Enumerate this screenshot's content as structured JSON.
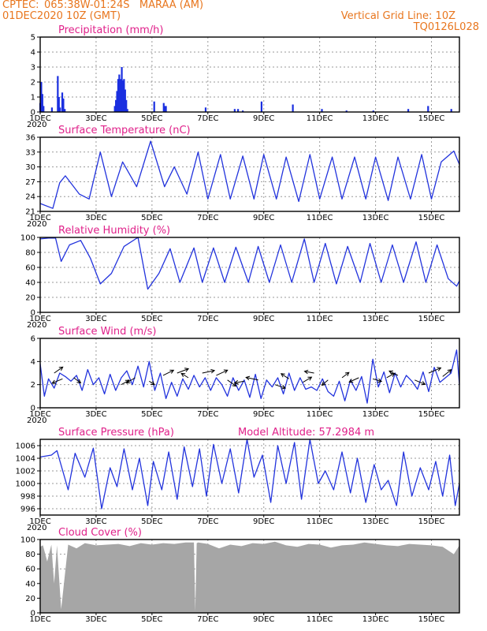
{
  "header": {
    "source": "CPTEC:",
    "location": "065:38W-01:24S   MARAA (AM)",
    "run": "01DEC2020 10Z (GMT)",
    "grid_note": "Vertical Grid Line: 10Z",
    "model_id": "TQ0126L028"
  },
  "colors": {
    "header_text": "#e8761e",
    "panel_title": "#e0218a",
    "series_line": "#2233dd",
    "precip_bar": "#1a2fe0",
    "cloud_fill": "#a6a6a6",
    "wind_arrow": "#000000"
  },
  "x_axis": {
    "tick_labels": [
      "1DEC",
      "3DEC",
      "5DEC",
      "7DEC",
      "9DEC",
      "11DEC",
      "13DEC",
      "15DEC"
    ],
    "tick_days": [
      1,
      3,
      5,
      7,
      9,
      11,
      13,
      15
    ],
    "range_days": [
      1,
      16
    ],
    "year_fragment": "2020"
  },
  "chart_data": [
    {
      "id": "precip",
      "type": "bar",
      "title": "Precipitation (mm/h)",
      "ylim": [
        0,
        5
      ],
      "yticks": [
        0,
        1,
        2,
        3,
        4,
        5
      ],
      "grid": true,
      "x": [
        1.0,
        1.04,
        1.08,
        1.12,
        1.42,
        1.63,
        1.67,
        1.71,
        1.79,
        1.83,
        1.88,
        3.67,
        3.71,
        3.75,
        3.79,
        3.83,
        3.88,
        3.92,
        3.96,
        4.0,
        4.04,
        4.08,
        4.12,
        5.08,
        5.42,
        5.46,
        5.5,
        6.92,
        7.96,
        8.08,
        8.25,
        8.92,
        10.04,
        11.08,
        11.96,
        12.92,
        14.17,
        14.88,
        15.71
      ],
      "values": [
        0.6,
        2.0,
        1.2,
        0.4,
        0.3,
        2.4,
        1.0,
        0.3,
        1.3,
        0.9,
        0.2,
        0.4,
        0.8,
        1.4,
        2.2,
        2.5,
        2.2,
        3.0,
        2.1,
        2.2,
        1.5,
        0.8,
        0.2,
        0.7,
        0.6,
        0.4,
        0.4,
        0.3,
        0.2,
        0.2,
        0.1,
        0.7,
        0.5,
        0.2,
        0.1,
        0.1,
        0.2,
        0.4,
        0.2
      ]
    },
    {
      "id": "temperature",
      "type": "line",
      "title": "Surface Temperature (nC)",
      "ylim": [
        21,
        36
      ],
      "yticks": [
        21,
        24,
        27,
        30,
        33,
        36
      ],
      "grid": true,
      "x": [
        1.0,
        1.45,
        1.7,
        1.9,
        2.4,
        2.75,
        3.15,
        3.55,
        3.95,
        4.45,
        4.95,
        5.45,
        5.8,
        6.25,
        6.65,
        7.0,
        7.45,
        7.8,
        8.25,
        8.65,
        9.0,
        9.45,
        9.8,
        10.25,
        10.65,
        11.0,
        11.45,
        11.8,
        12.25,
        12.65,
        13.0,
        13.45,
        13.8,
        14.25,
        14.65,
        15.0,
        15.35,
        15.8,
        16.0
      ],
      "values": [
        22.6,
        21.6,
        26.8,
        28.2,
        24.5,
        23.5,
        33.0,
        24.0,
        31.0,
        26.0,
        35.2,
        26.0,
        30.0,
        24.5,
        33.0,
        23.5,
        32.5,
        23.5,
        32.2,
        23.5,
        32.5,
        23.5,
        32.0,
        23.0,
        32.5,
        23.5,
        32.0,
        23.5,
        32.0,
        23.5,
        32.0,
        23.2,
        32.0,
        23.5,
        32.5,
        23.5,
        31.0,
        33.2,
        30.5
      ]
    },
    {
      "id": "humidity",
      "type": "line",
      "title": "Relative Humidity (%)",
      "ylim": [
        0,
        100
      ],
      "yticks": [
        0,
        20,
        40,
        60,
        80,
        100
      ],
      "grid": true,
      "x": [
        1.0,
        1.3,
        1.55,
        1.75,
        2.05,
        2.45,
        2.8,
        3.15,
        3.55,
        4.0,
        4.5,
        4.85,
        5.25,
        5.65,
        6.0,
        6.5,
        6.8,
        7.2,
        7.6,
        8.0,
        8.45,
        8.8,
        9.2,
        9.6,
        10.0,
        10.45,
        10.8,
        11.2,
        11.6,
        12.0,
        12.45,
        12.8,
        13.2,
        13.6,
        14.0,
        14.45,
        14.8,
        15.2,
        15.6,
        15.9,
        16.0
      ],
      "values": [
        98,
        99,
        99,
        68,
        90,
        96,
        72,
        38,
        52,
        88,
        100,
        31,
        52,
        85,
        40,
        86,
        40,
        86,
        40,
        87,
        40,
        88,
        40,
        90,
        40,
        98,
        40,
        92,
        38,
        88,
        40,
        92,
        40,
        90,
        40,
        94,
        40,
        90,
        45,
        35,
        42
      ]
    },
    {
      "id": "wind",
      "type": "line",
      "title": "Surface Wind (m/s)",
      "ylim": [
        0,
        6
      ],
      "yticks": [
        0,
        2,
        4,
        6
      ],
      "grid": true,
      "x": [
        1.0,
        1.15,
        1.3,
        1.5,
        1.7,
        1.9,
        2.1,
        2.3,
        2.5,
        2.7,
        2.9,
        3.1,
        3.3,
        3.5,
        3.7,
        3.9,
        4.1,
        4.3,
        4.5,
        4.7,
        4.9,
        5.1,
        5.3,
        5.5,
        5.7,
        5.9,
        6.1,
        6.3,
        6.5,
        6.7,
        6.9,
        7.1,
        7.3,
        7.5,
        7.7,
        7.9,
        8.1,
        8.3,
        8.5,
        8.7,
        8.9,
        9.1,
        9.3,
        9.5,
        9.7,
        9.9,
        10.1,
        10.3,
        10.5,
        10.7,
        10.9,
        11.1,
        11.3,
        11.5,
        11.7,
        11.9,
        12.1,
        12.3,
        12.5,
        12.7,
        12.9,
        13.1,
        13.3,
        13.5,
        13.7,
        13.9,
        14.1,
        14.3,
        14.5,
        14.7,
        14.9,
        15.1,
        15.3,
        15.5,
        15.7,
        15.9,
        16.0
      ],
      "values": [
        3.8,
        1.0,
        2.5,
        1.7,
        3.0,
        2.7,
        2.3,
        2.8,
        1.5,
        3.3,
        2.0,
        2.6,
        1.2,
        2.9,
        1.5,
        2.6,
        3.2,
        2.0,
        3.6,
        1.8,
        4.0,
        1.5,
        3.0,
        0.8,
        2.2,
        1.0,
        2.5,
        1.6,
        2.8,
        1.8,
        2.6,
        1.5,
        2.6,
        2.0,
        1.0,
        2.6,
        1.5,
        2.4,
        0.9,
        2.9,
        0.8,
        2.4,
        1.8,
        2.6,
        1.2,
        3.0,
        1.5,
        2.6,
        1.6,
        1.8,
        1.5,
        2.5,
        1.4,
        1.0,
        2.3,
        0.6,
        2.4,
        1.5,
        2.7,
        0.4,
        4.2,
        1.8,
        3.1,
        1.3,
        3.0,
        1.8,
        2.8,
        2.3,
        1.6,
        3.1,
        1.4,
        3.5,
        2.2,
        2.6,
        3.0,
        5.0,
        2.0
      ]
    },
    {
      "id": "pressure",
      "type": "line",
      "title": "Surface Pressure (hPa)",
      "annotation": "Model Altitude: 57.2984  m",
      "ylim": [
        995,
        1007
      ],
      "yticks": [
        996,
        998,
        1000,
        1002,
        1004,
        1006
      ],
      "grid": true,
      "x": [
        1.0,
        1.4,
        1.6,
        2.0,
        2.25,
        2.6,
        2.9,
        3.2,
        3.5,
        3.75,
        4.0,
        4.3,
        4.55,
        4.85,
        5.05,
        5.35,
        5.6,
        5.9,
        6.15,
        6.45,
        6.7,
        6.95,
        7.2,
        7.5,
        7.8,
        8.1,
        8.4,
        8.65,
        8.95,
        9.25,
        9.5,
        9.8,
        10.1,
        10.35,
        10.65,
        10.95,
        11.2,
        11.5,
        11.8,
        12.1,
        12.35,
        12.65,
        12.95,
        13.2,
        13.45,
        13.75,
        14.0,
        14.3,
        14.6,
        14.9,
        15.15,
        15.4,
        15.65,
        15.85,
        16.0
      ],
      "values": [
        1004.2,
        1004.5,
        1005.2,
        999.0,
        1004.8,
        1001.0,
        1005.6,
        996.0,
        1002.5,
        999.5,
        1005.5,
        999.0,
        1004.0,
        996.5,
        1003.5,
        999.0,
        1005.0,
        997.5,
        1005.8,
        999.5,
        1005.5,
        998.0,
        1006.2,
        1000.0,
        1005.5,
        998.5,
        1007.0,
        1001.0,
        1004.5,
        997.0,
        1006.0,
        1000.0,
        1006.5,
        997.5,
        1007.0,
        1000.0,
        1002.0,
        999.0,
        1005.0,
        998.5,
        1004.0,
        997.0,
        1003.0,
        999.0,
        1000.5,
        996.5,
        1005.0,
        998.0,
        1002.5,
        999.0,
        1003.5,
        998.0,
        1004.5,
        996.5,
        1000.0
      ]
    },
    {
      "id": "cloud",
      "type": "area",
      "title": "Cloud Cover (%)",
      "ylim": [
        0,
        100
      ],
      "yticks": [
        0,
        20,
        40,
        60,
        80,
        100
      ],
      "grid": true,
      "x": [
        1.0,
        1.1,
        1.25,
        1.4,
        1.5,
        1.6,
        1.75,
        2.0,
        2.3,
        2.6,
        3.0,
        3.4,
        3.8,
        4.2,
        4.6,
        5.0,
        5.4,
        5.8,
        6.2,
        6.5,
        6.55,
        6.6,
        6.65,
        7.0,
        7.4,
        7.8,
        8.2,
        8.6,
        9.0,
        9.4,
        9.8,
        10.2,
        10.6,
        11.0,
        11.4,
        11.8,
        12.2,
        12.6,
        13.0,
        13.4,
        13.8,
        14.2,
        14.6,
        15.0,
        15.4,
        15.8,
        16.0
      ],
      "values": [
        90,
        92,
        70,
        93,
        40,
        92,
        5,
        93,
        88,
        95,
        92,
        93,
        94,
        91,
        95,
        93,
        95,
        94,
        96,
        96,
        2,
        95,
        96,
        94,
        88,
        93,
        91,
        95,
        94,
        97,
        92,
        90,
        94,
        93,
        89,
        92,
        93,
        96,
        94,
        92,
        91,
        94,
        93,
        92,
        90,
        80,
        92
      ]
    }
  ],
  "wind_vectors": {
    "x": [
      1.5,
      1.8,
      2.2,
      3.9,
      4.4,
      4.9,
      5.4,
      5.9,
      6.3,
      6.8,
      7.3,
      7.7,
      8.3,
      8.8,
      9.4,
      9.9,
      10.4,
      10.8,
      11.3,
      11.8,
      12.4,
      12.9,
      13.4,
      13.8,
      14.4,
      14.9,
      15.4
    ],
    "y": [
      3.0,
      2.5,
      2.6,
      2.0,
      2.6,
      2.3,
      2.8,
      3.0,
      2.6,
      3.0,
      2.8,
      2.4,
      2.3,
      2.4,
      2.0,
      2.5,
      2.2,
      3.0,
      2.4,
      2.6,
      2.6,
      2.5,
      2.6,
      2.8,
      2.4,
      3.0,
      2.7
    ],
    "u": [
      1.0,
      -1.2,
      0.8,
      0.9,
      -1.0,
      0.6,
      1.2,
      1.3,
      -0.8,
      1.4,
      1.3,
      1.0,
      -1.1,
      -1.4,
      1.2,
      -0.9,
      1.0,
      -1.1,
      -0.7,
      0.8,
      -1.1,
      1.0,
      0.9,
      -1.0,
      1.2,
      1.4,
      1.0
    ],
    "v": [
      0.7,
      -0.5,
      -0.6,
      0.5,
      -0.6,
      -0.4,
      0.6,
      0.5,
      0.5,
      0.3,
      0.6,
      -0.7,
      -0.2,
      0.3,
      -0.4,
      0.6,
      0.6,
      0.2,
      -0.6,
      0.6,
      -0.5,
      -0.3,
      0.5,
      0.5,
      -0.5,
      0.6,
      0.8
    ]
  }
}
